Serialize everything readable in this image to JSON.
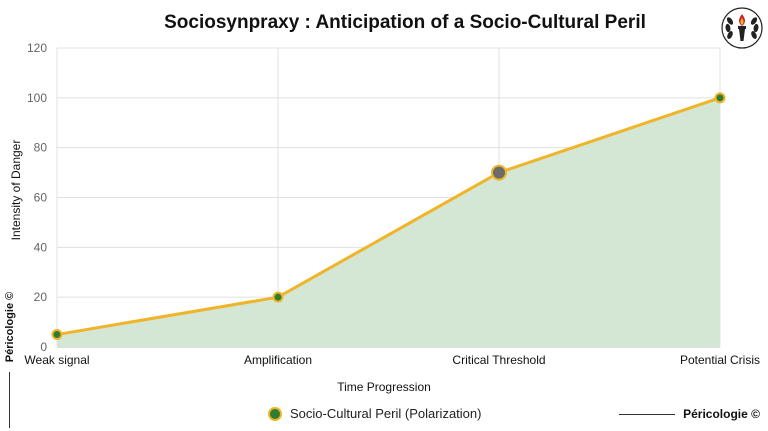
{
  "chart_data": {
    "type": "area",
    "title": "Sociosynpraxy : Anticipation of a Socio-Cultural Peril",
    "xlabel": "Time Progression",
    "ylabel": "Intensity of Danger",
    "categories": [
      "Weak signal",
      "Amplification",
      "Critical Threshold",
      "Potential Crisis"
    ],
    "series": [
      {
        "name": "Socio-Cultural Peril (Polarization)",
        "values": [
          5,
          20,
          70,
          100
        ]
      }
    ],
    "ylim": [
      0,
      120
    ],
    "yticks": [
      0,
      20,
      40,
      60,
      80,
      100,
      120
    ],
    "grid": true,
    "legend_position": "bottom",
    "highlight_index": 2,
    "colors": {
      "line": "#f0b429",
      "fill": "#d4e6d4",
      "point": "#2e7d32",
      "highlight_point": "#6b6b6b",
      "grid": "#e0e0e0"
    }
  },
  "branding": {
    "label": "Péricologie ©",
    "logo": "torch-laurel-emblem-icon"
  }
}
